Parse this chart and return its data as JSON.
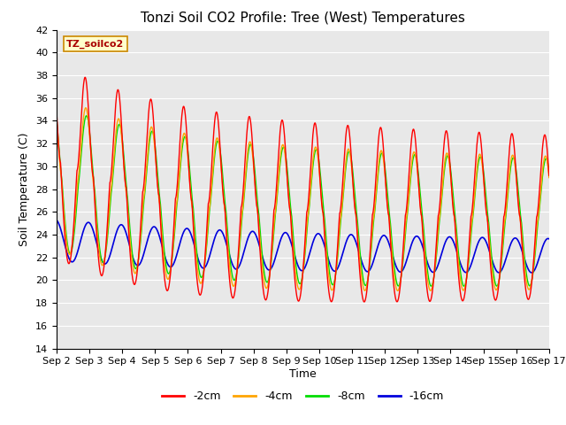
{
  "title": "Tonzi Soil CO2 Profile: Tree (West) Temperatures",
  "ylabel": "Soil Temperature (C)",
  "xlabel": "Time",
  "ylim": [
    14,
    42
  ],
  "bg_color": "#e8e8e8",
  "legend_label": "TZ_soilco2",
  "legend_entries": [
    "-2cm",
    "-4cm",
    "-8cm",
    "-16cm"
  ],
  "line_colors": [
    "#ff0000",
    "#ffa500",
    "#00dd00",
    "#0000dd"
  ],
  "xtick_labels": [
    "Sep 2",
    "Sep 3",
    "Sep 4",
    "Sep 5",
    "Sep 6",
    "Sep 7",
    "Sep 8",
    "Sep 9",
    "Sep 10",
    "Sep 11",
    "Sep 12",
    "Sep 13",
    "Sep 14",
    "Sep 15",
    "Sep 16",
    "Sep 17"
  ],
  "title_fontsize": 11,
  "tick_fontsize": 8
}
